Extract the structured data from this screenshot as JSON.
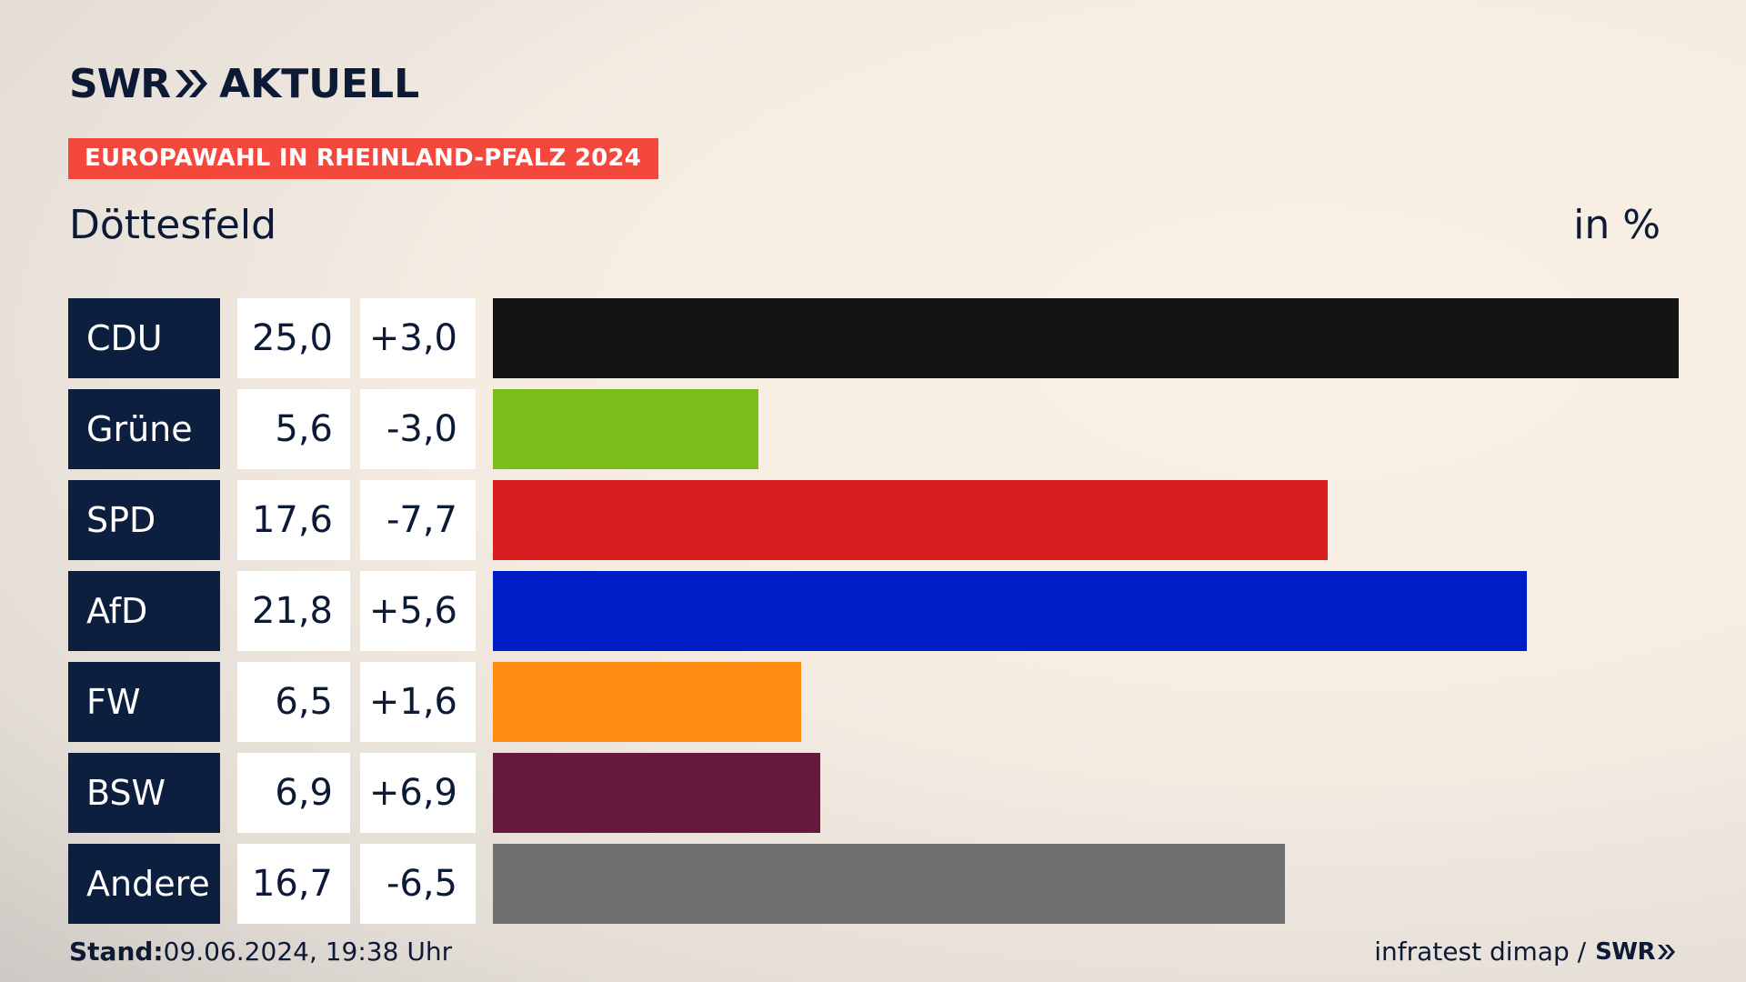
{
  "header": {
    "logo_swr": "SWR",
    "logo_aktuell": "AKTUELL",
    "banner": "EUROPAWAHL IN RHEINLAND-PFALZ 2024",
    "place": "Döttesfeld",
    "unit": "in %"
  },
  "footer": {
    "stand_label": "Stand:",
    "stand_value": "09.06.2024, 19:38 Uhr",
    "source": "infratest dimap /",
    "source_logo": "SWR"
  },
  "colors": {
    "banner": "#f5483c",
    "label_bg": "#0c1f3f",
    "text": "#0c1a36"
  },
  "chart_data": {
    "type": "bar",
    "orientation": "horizontal",
    "title": "Döttesfeld",
    "unit": "in %",
    "categories": [
      "CDU",
      "Grüne",
      "SPD",
      "AfD",
      "FW",
      "BSW",
      "Andere"
    ],
    "values": [
      25.0,
      5.6,
      17.6,
      21.8,
      6.5,
      6.9,
      16.7
    ],
    "value_labels": [
      "25,0",
      "5,6",
      "17,6",
      "21,8",
      "6,5",
      "6,9",
      "16,7"
    ],
    "diff_labels": [
      "+3,0",
      "-3,0",
      "-7,7",
      "+5,6",
      "+1,6",
      "+6,9",
      "-6,5"
    ],
    "colors": [
      "#141414",
      "#7bbd1c",
      "#d81e1e",
      "#001ec8",
      "#ff8c11",
      "#66183d",
      "#6f7072"
    ],
    "xlim": [
      0,
      25.0
    ]
  }
}
